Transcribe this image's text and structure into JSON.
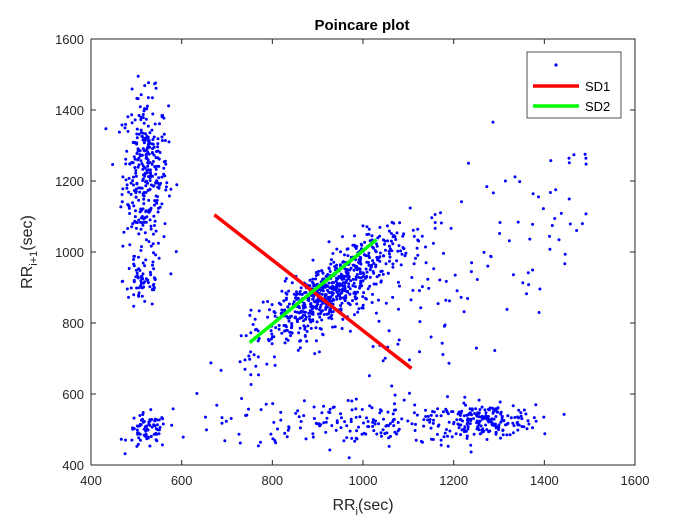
{
  "chart_data": {
    "type": "scatter",
    "title": "Poincare plot",
    "xlabel": {
      "base": "RR",
      "sub": "i",
      "unit": "(sec)"
    },
    "ylabel": {
      "base": "RR",
      "sub": "i+1",
      "unit": "(sec)"
    },
    "xlim": [
      400,
      1600
    ],
    "ylim": [
      400,
      1600
    ],
    "xticks": [
      400,
      600,
      800,
      1000,
      1200,
      1400,
      1600
    ],
    "yticks": [
      400,
      600,
      800,
      1000,
      1200,
      1400,
      1600
    ],
    "grid": false,
    "legend_position": "top-right",
    "colors": {
      "points": "#0000ff",
      "sd1": "#ff0000",
      "sd2": "#00ff00",
      "axis": "#262626"
    },
    "clusters": [
      {
        "cx": 520,
        "cy": 1220,
        "sx": 25,
        "sy": 110,
        "n": 330
      },
      {
        "cx": 515,
        "cy": 920,
        "sx": 22,
        "sy": 40,
        "n": 60
      },
      {
        "cx": 525,
        "cy": 495,
        "sx": 22,
        "sy": 25,
        "n": 75
      },
      {
        "cx": 1270,
        "cy": 525,
        "sx": 55,
        "sy": 22,
        "n": 170
      },
      {
        "cx": 1000,
        "cy": 520,
        "sx": 160,
        "sy": 35,
        "n": 210
      }
    ],
    "diagonal_cluster": {
      "x_min": 700,
      "x_max": 1120,
      "sd_along": 110,
      "sd_perp": 35,
      "n": 700
    },
    "sparse_band": {
      "x_min": 1000,
      "x_max": 1500,
      "n": 110
    },
    "series": [
      {
        "name": "",
        "kind": "points"
      },
      {
        "name": "SD1",
        "kind": "line",
        "x": [
          672,
          1107
        ],
        "y": [
          1105,
          672
        ]
      },
      {
        "name": "SD2",
        "kind": "line",
        "x": [
          750,
          1030
        ],
        "y": [
          745,
          1035
        ]
      }
    ]
  }
}
